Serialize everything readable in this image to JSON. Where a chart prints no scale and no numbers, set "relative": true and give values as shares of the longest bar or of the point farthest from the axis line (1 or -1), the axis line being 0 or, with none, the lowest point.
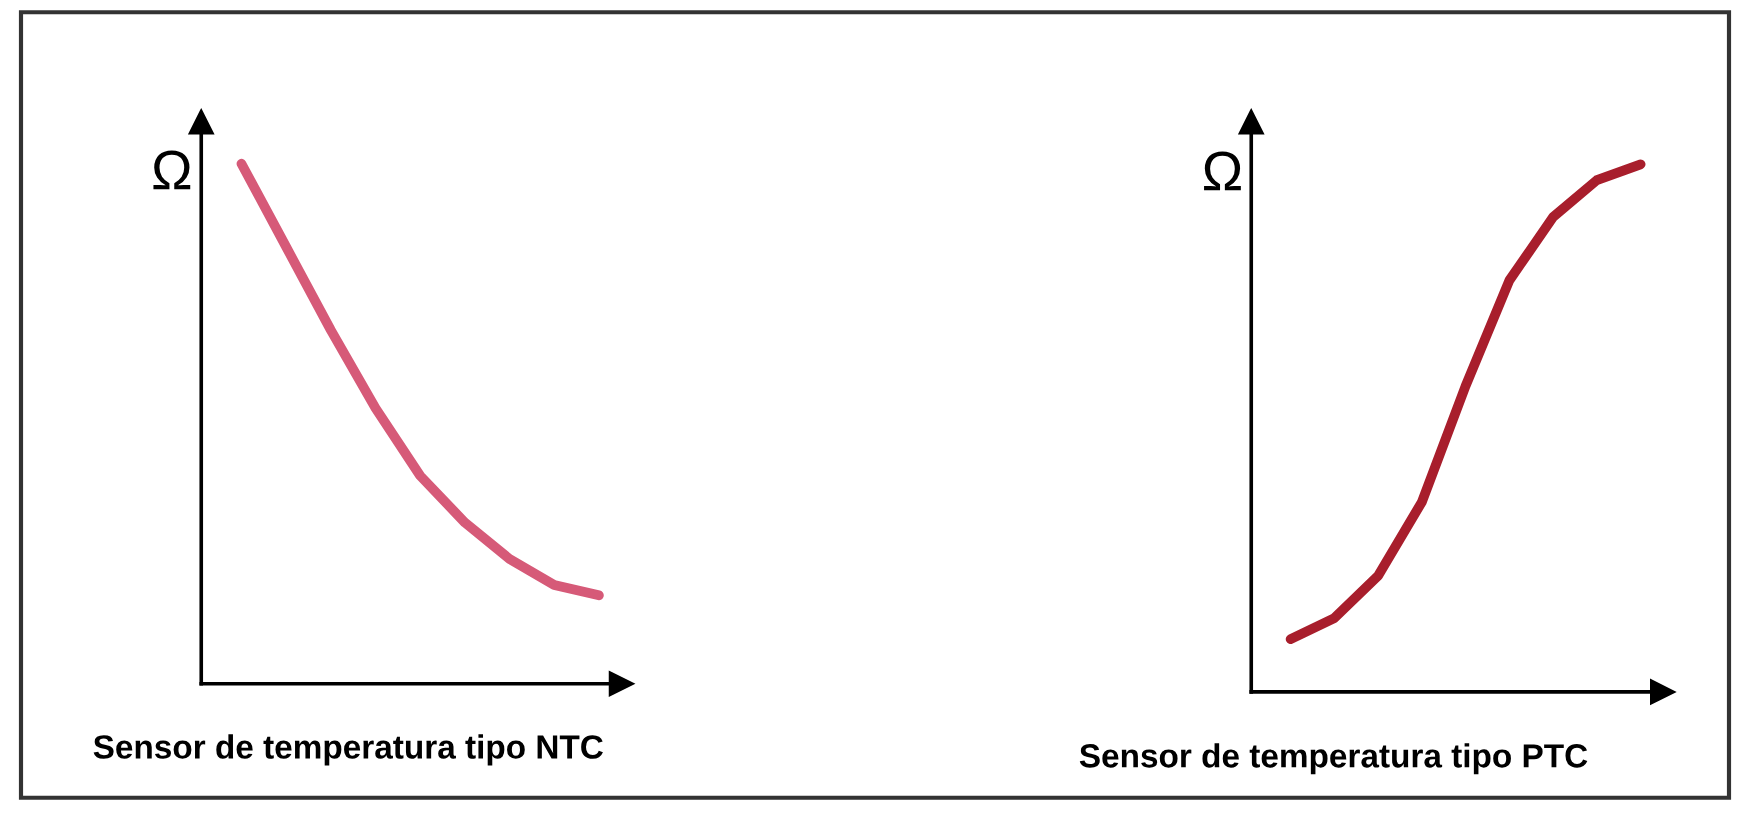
{
  "chart_data": [
    {
      "type": "line",
      "relative": true,
      "ylabel": "Ω",
      "xlabel": "Sensor de temperatura tipo NTC",
      "categories": [
        null,
        null,
        null,
        null,
        null,
        null,
        null,
        null,
        null
      ],
      "series": [
        {
          "color": "#d65a78",
          "values": [
            1.0,
            0.84,
            0.68,
            0.53,
            0.4,
            0.31,
            0.24,
            0.19,
            0.17
          ]
        }
      ],
      "grid": false,
      "legend": false
    },
    {
      "type": "line",
      "relative": true,
      "ylabel": "Ω",
      "xlabel": "Sensor de temperatura tipo PTC",
      "categories": [
        null,
        null,
        null,
        null,
        null,
        null,
        null,
        null,
        null
      ],
      "series": [
        {
          "color": "#a81e2c",
          "values": [
            0.1,
            0.14,
            0.22,
            0.36,
            0.58,
            0.78,
            0.9,
            0.97,
            1.0
          ]
        }
      ],
      "grid": false,
      "legend": false
    }
  ]
}
